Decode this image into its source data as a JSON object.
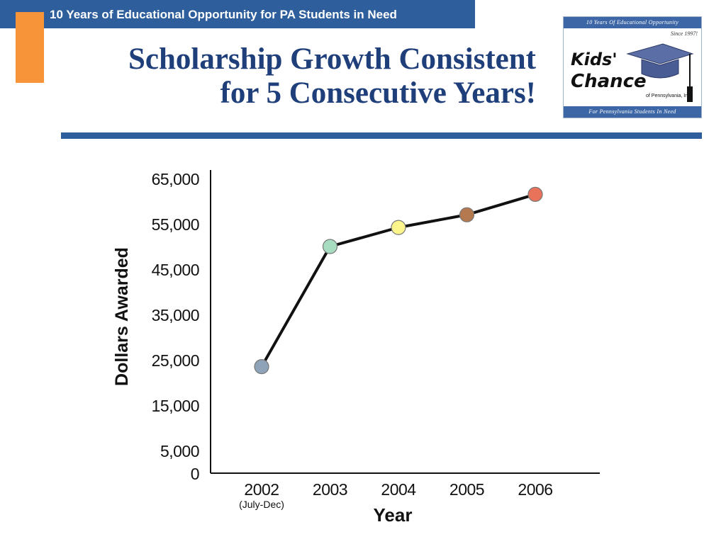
{
  "header": {
    "banner": "10 Years of Educational Opportunity for PA Students in Need"
  },
  "slide": {
    "title_line1": "Scholarship Growth Consistent",
    "title_line2": "for 5 Consecutive Years!"
  },
  "logo": {
    "top_text": "10 Years Of Educational Opportunity",
    "since": "Since 1997!",
    "brand_line1": "Kids'",
    "brand_line2": "Chance",
    "org": "of Pennsylvania, Inc.",
    "bottom_text": "For Pennsylvania Students In Need"
  },
  "colors": {
    "banner": "#2e5f9c",
    "accent_orange": "#f7943a",
    "title": "#1f3f7a"
  },
  "chart_data": {
    "type": "line",
    "title": "",
    "xlabel": "Year",
    "ylabel": "Dollars Awarded",
    "categories": [
      "2002",
      "2003",
      "2004",
      "2005",
      "2006"
    ],
    "category_sublabels": [
      "(July-Dec)",
      "",
      "",
      "",
      ""
    ],
    "series": [
      {
        "values": [
          23500,
          50000,
          54200,
          57000,
          61500
        ],
        "line_color": "#111111",
        "point_colors": [
          "#8fa3b8",
          "#a8dcc0",
          "#fbf58c",
          "#b5794f",
          "#e8735a"
        ]
      }
    ],
    "yticks": [
      0,
      5000,
      15000,
      25000,
      35000,
      45000,
      55000,
      65000
    ],
    "ytick_labels": [
      "0",
      "5,000",
      "15,000",
      "25,000",
      "35,000",
      "45,000",
      "55,000",
      "65,000"
    ],
    "ylim": [
      0,
      65000
    ],
    "grid": false,
    "legend": "none"
  }
}
